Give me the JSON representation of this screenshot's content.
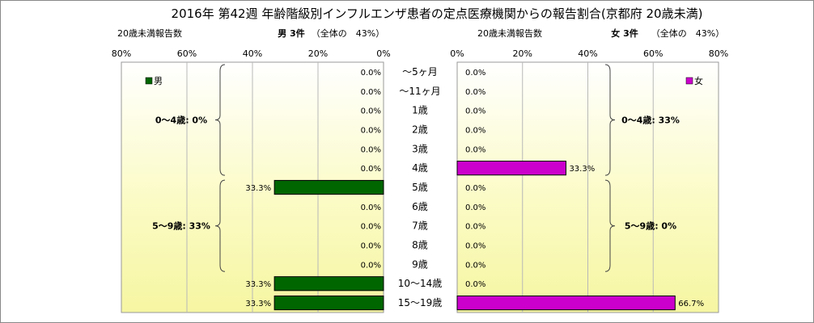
{
  "chart_data": {
    "type": "bar",
    "title": "2016年 第42週 年齢階級別インフルエンザ患者の定点医療機関からの報告割合(京都府 20歳未満)",
    "categories": [
      "～5ヶ月",
      "～11ヶ月",
      "1歳",
      "2歳",
      "3歳",
      "4歳",
      "5歳",
      "6歳",
      "7歳",
      "8歳",
      "9歳",
      "10～14歳",
      "15～19歳"
    ],
    "axis_ticks": [
      "0%",
      "20%",
      "40%",
      "60%",
      "80%"
    ],
    "xlim": [
      0,
      80
    ],
    "left_panel": {
      "caption": "20歳未満報告数",
      "header": "男 3件",
      "share": "（全体の　43%）",
      "legend": "男",
      "color": "#006600",
      "values": [
        0.0,
        0.0,
        0.0,
        0.0,
        0.0,
        0.0,
        33.3,
        0.0,
        0.0,
        0.0,
        0.0,
        33.3,
        33.3
      ],
      "value_labels": [
        "0.0%",
        "0.0%",
        "0.0%",
        "0.0%",
        "0.0%",
        "0.0%",
        "33.3%",
        "0.0%",
        "0.0%",
        "0.0%",
        "0.0%",
        "33.3%",
        "33.3%"
      ],
      "groups": [
        {
          "label": "0～4歳: 0%",
          "from": 0,
          "to": 5
        },
        {
          "label": "5～9歳: 33%",
          "from": 6,
          "to": 10
        }
      ]
    },
    "right_panel": {
      "caption": "20歳未満報告数",
      "header": "女 3件",
      "share": "（全体の　43%）",
      "legend": "女",
      "color": "#cc00cc",
      "values": [
        0.0,
        0.0,
        0.0,
        0.0,
        0.0,
        33.3,
        0.0,
        0.0,
        0.0,
        0.0,
        0.0,
        0.0,
        66.7
      ],
      "value_labels": [
        "0.0%",
        "0.0%",
        "0.0%",
        "0.0%",
        "0.0%",
        "33.3%",
        "0.0%",
        "0.0%",
        "0.0%",
        "0.0%",
        "0.0%",
        "0.0%",
        "66.7%"
      ],
      "groups": [
        {
          "label": "0～4歳: 33%",
          "from": 0,
          "to": 5
        },
        {
          "label": "5～9歳: 0%",
          "from": 6,
          "to": 10
        }
      ]
    },
    "grid": true,
    "legend_position": "top"
  }
}
